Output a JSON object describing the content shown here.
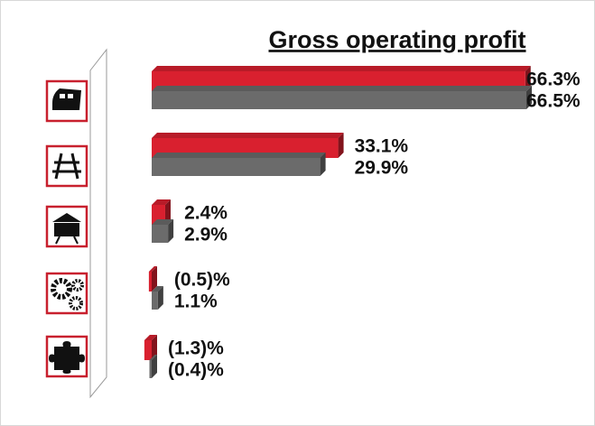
{
  "chart_data": {
    "type": "bar",
    "orientation": "horizontal",
    "title": "Gross operating profit",
    "categories": [
      null,
      null,
      null,
      null,
      null
    ],
    "series": [
      {
        "color": "#d9202f",
        "values": [
          66.3,
          33.1,
          2.4,
          -0.5,
          -1.3
        ],
        "value_labels": [
          "66.3%",
          "33.1%",
          "2.4%",
          "(0.5)%",
          "(1.3)%"
        ]
      },
      {
        "color": "#6b6b6b",
        "values": [
          66.5,
          29.9,
          2.9,
          1.1,
          -0.4
        ],
        "value_labels": [
          "66.5%",
          "29.9%",
          "2.9%",
          "1.1%",
          "(0.4)%"
        ]
      }
    ]
  }
}
